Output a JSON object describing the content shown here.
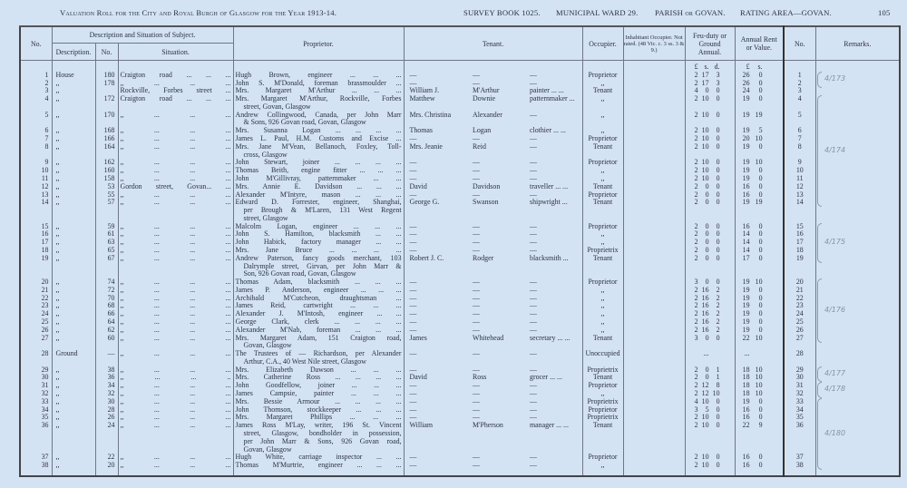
{
  "header": {
    "title": "Valuation Roll for the City and Royal Burgh of Glasgow for the Year 1913-14.",
    "survey_book": "SURVEY BOOK 1025.",
    "ward": "MUNICIPAL WARD 29.",
    "parish": "PARISH or GOVAN.",
    "rating_area": "RATING AREA—GOVAN.",
    "page_number": "105"
  },
  "columns": {
    "no": "No.",
    "group_subject": "Description and Situation of Subject.",
    "description": "Description.",
    "number": "No.",
    "situation": "Situation.",
    "proprietor": "Proprietor.",
    "tenant": "Tenant.",
    "occupier": "Occupier.",
    "inhabitant": "Inhabitant Occupier. Not rated. (48 Vic. c. 3 ss. 3 & 9.)",
    "feu": "Feu-duty or Ground Annual.",
    "rent": "Annual Rent or Value.",
    "no2": "No.",
    "remarks": "Remarks.",
    "feu_units": [
      "£",
      "s.",
      "d."
    ],
    "rent_units": [
      "£",
      "s."
    ]
  },
  "rows": [
    {
      "no": "1",
      "desc": "House",
      "num": "180",
      "sit": "Craigton road ... ... ...",
      "prop": [
        "Hugh Brown, engineer ... ... ..."
      ],
      "ten": [
        "—",
        "—",
        "—"
      ],
      "occ": "Proprietor",
      "feu": [
        "2",
        "17",
        "3"
      ],
      "rent": [
        "26",
        "0"
      ]
    },
    {
      "no": "2",
      "desc": ",,",
      "num": "178",
      "sit": ",, ... ... ...",
      "prop": [
        "John S. M'Donald, foreman brassmoulder ..."
      ],
      "ten": [
        "—",
        "—",
        "—"
      ],
      "occ": ",,",
      "feu": [
        "2",
        "17",
        "3"
      ],
      "rent": [
        "26",
        "0"
      ]
    },
    {
      "no": "3",
      "desc": ",,",
      "num": "",
      "sit": "Rockville, Forbes street ...",
      "prop": [
        "Mrs. Margaret M'Arthur ... ... ..."
      ],
      "ten": [
        "William J.",
        "M'Arthur",
        "painter ... ..."
      ],
      "occ": "Tenant",
      "feu": [
        "4",
        "0",
        "0"
      ],
      "rent": [
        "24",
        "0"
      ]
    },
    {
      "no": "4",
      "desc": ",,",
      "num": "172",
      "sit": "Craigton road ... ... ...",
      "prop": [
        "Mrs. Margaret M'Arthur, Rockville, Forbes",
        "street, Govan, Glasgow"
      ],
      "ten": [
        "Matthew",
        "Downie",
        "patternmaker ..."
      ],
      "occ": ",,",
      "feu": [
        "2",
        "10",
        "0"
      ],
      "rent": [
        "19",
        "0"
      ]
    },
    {
      "no": "5",
      "desc": ",,",
      "num": "170",
      "sit": ",, ... ... ...",
      "prop": [
        "Andrew Collingwood, Canada, per John Marr",
        "& Sons, 926 Govan road, Govan, Glasgow"
      ],
      "ten": [
        "Mrs. Christina",
        "Alexander",
        "—"
      ],
      "occ": ",,",
      "feu": [
        "2",
        "10",
        "0"
      ],
      "rent": [
        "19",
        "19"
      ]
    },
    {
      "no": "6",
      "desc": ",,",
      "num": "168",
      "sit": ",, ... ... ...",
      "prop": [
        "Mrs. Susanna Logan ... ... ... ..."
      ],
      "ten": [
        "Thomas",
        "Logan",
        "clothier ... ..."
      ],
      "occ": ",,",
      "feu": [
        "2",
        "10",
        "0"
      ],
      "rent": [
        "19",
        "5"
      ]
    },
    {
      "no": "7",
      "desc": ",,",
      "num": "166",
      "sit": ",, ... ... ...",
      "prop": [
        "James L. Paul, H.M. Customs and Excise ..."
      ],
      "ten": [
        "—",
        "—",
        "—"
      ],
      "occ": "Proprietor",
      "feu": [
        "2",
        "10",
        "0"
      ],
      "rent": [
        "20",
        "10"
      ]
    },
    {
      "no": "8",
      "desc": ",,",
      "num": "164",
      "sit": ",, ... ... ...",
      "prop": [
        "Mrs. Jane M'Vean, Bellanoch, Foxley, Toll-",
        "cross, Glasgow"
      ],
      "ten": [
        "Mrs. Jeanie",
        "Reid",
        "—"
      ],
      "occ": "Tenant",
      "feu": [
        "2",
        "10",
        "0"
      ],
      "rent": [
        "19",
        "0"
      ]
    },
    {
      "no": "9",
      "desc": ",,",
      "num": "162",
      "sit": ",, ... ... ...",
      "prop": [
        "John Stewart, joiner ... ... ... ..."
      ],
      "ten": [
        "—",
        "—",
        "—"
      ],
      "occ": "Proprietor",
      "feu": [
        "2",
        "10",
        "0"
      ],
      "rent": [
        "19",
        "10"
      ]
    },
    {
      "no": "10",
      "desc": ",,",
      "num": "160",
      "sit": ",, ... ... ...",
      "prop": [
        "Thomas Beith, engine fitter ... ... ..."
      ],
      "ten": [
        "—",
        "—",
        "—"
      ],
      "occ": ",,",
      "feu": [
        "2",
        "10",
        "0"
      ],
      "rent": [
        "19",
        "0"
      ]
    },
    {
      "no": "11",
      "desc": ",,",
      "num": "158",
      "sit": ",, ... ... ...",
      "prop": [
        "John M'Gillivray, patternmaker ... ..."
      ],
      "ten": [
        "—",
        "—",
        "—"
      ],
      "occ": ",,",
      "feu": [
        "2",
        "10",
        "0"
      ],
      "rent": [
        "19",
        "0"
      ]
    },
    {
      "no": "12",
      "desc": ",,",
      "num": "53",
      "sit": "Gordon street, Govan... ...",
      "prop": [
        "Mrs. Annie E. Davidson ... ... ..."
      ],
      "ten": [
        "David",
        "Davidson",
        "traveller ... ..."
      ],
      "occ": "Tenant",
      "feu": [
        "2",
        "0",
        "0"
      ],
      "rent": [
        "16",
        "0"
      ]
    },
    {
      "no": "13",
      "desc": ",,",
      "num": "55",
      "sit": ",, ... ... ...",
      "prop": [
        "Alexander M'Intyre, mason ... ... ..."
      ],
      "ten": [
        "—",
        "—",
        "—"
      ],
      "occ": "Proprietor",
      "feu": [
        "2",
        "0",
        "0"
      ],
      "rent": [
        "16",
        "0"
      ]
    },
    {
      "no": "14",
      "desc": ",,",
      "num": "57",
      "sit": ",, ... ... ...",
      "prop": [
        "Edward D. Forrester, engineer, Shanghai,",
        "per Brough & M'Laren, 131 West Regent",
        "street, Glasgow"
      ],
      "ten": [
        "George G.",
        "Swanson",
        "shipwright ..."
      ],
      "occ": "Tenant",
      "feu": [
        "2",
        "0",
        "0"
      ],
      "rent": [
        "19",
        "19"
      ]
    },
    {
      "no": "15",
      "desc": ",,",
      "num": "59",
      "sit": ",, ... ... ...",
      "prop": [
        "Malcolm Logan, engineer ... ... ..."
      ],
      "ten": [
        "—",
        "—",
        "—"
      ],
      "occ": "Proprietor",
      "feu": [
        "2",
        "0",
        "0"
      ],
      "rent": [
        "16",
        "0"
      ]
    },
    {
      "no": "16",
      "desc": ",,",
      "num": "61",
      "sit": ",, ... ... ...",
      "prop": [
        "John S. Hamilton, blacksmith ... ..."
      ],
      "ten": [
        "—",
        "—",
        "—"
      ],
      "occ": ",,",
      "feu": [
        "2",
        "0",
        "0"
      ],
      "rent": [
        "14",
        "0"
      ]
    },
    {
      "no": "17",
      "desc": ",,",
      "num": "63",
      "sit": ",, ... ... ...",
      "prop": [
        "John Habick, factory manager ... ..."
      ],
      "ten": [
        "—",
        "—",
        "—"
      ],
      "occ": ",,",
      "feu": [
        "2",
        "0",
        "0"
      ],
      "rent": [
        "14",
        "0"
      ]
    },
    {
      "no": "18",
      "desc": ",,",
      "num": "65",
      "sit": ",, ... ... ...",
      "prop": [
        "Mrs. Jane Bruce ... ... ... ..."
      ],
      "ten": [
        "—",
        "—",
        "—"
      ],
      "occ": "Proprietrix",
      "feu": [
        "2",
        "0",
        "0"
      ],
      "rent": [
        "14",
        "0"
      ]
    },
    {
      "no": "19",
      "desc": ",,",
      "num": "67",
      "sit": ",, ... ... ...",
      "prop": [
        "Andrew Paterson, fancy goods merchant, 103",
        "Dalrymple street, Girvan, per John Marr &",
        "Son, 926 Govan road, Govan, Glasgow"
      ],
      "ten": [
        "Robert J. C.",
        "Rodger",
        "blacksmith ..."
      ],
      "occ": "Tenant",
      "feu": [
        "2",
        "0",
        "0"
      ],
      "rent": [
        "17",
        "0"
      ]
    },
    {
      "no": "20",
      "desc": ",,",
      "num": "74",
      "sit": ",, ... ... ...",
      "prop": [
        "Thomas Adam, blacksmith ... ... ..."
      ],
      "ten": [
        "—",
        "—",
        "—"
      ],
      "occ": "Proprietor",
      "feu": [
        "3",
        "0",
        "0"
      ],
      "rent": [
        "19",
        "10"
      ]
    },
    {
      "no": "21",
      "desc": ",,",
      "num": "72",
      "sit": ",, ... ... ...",
      "prop": [
        "James P. Anderson, engineer ... ... ..."
      ],
      "ten": [
        "—",
        "—",
        "—"
      ],
      "occ": ",,",
      "feu": [
        "2",
        "16",
        "2"
      ],
      "rent": [
        "19",
        "0"
      ]
    },
    {
      "no": "22",
      "desc": ",,",
      "num": "70",
      "sit": ",, ... ... ...",
      "prop": [
        "Archibald M'Cutcheon, draughtsman ..."
      ],
      "ten": [
        "—",
        "—",
        "—"
      ],
      "occ": ",,",
      "feu": [
        "2",
        "16",
        "2"
      ],
      "rent": [
        "19",
        "0"
      ]
    },
    {
      "no": "23",
      "desc": ",,",
      "num": "68",
      "sit": ",, ... ... ...",
      "prop": [
        "James Reid, cartwright ... ... ..."
      ],
      "ten": [
        "—",
        "—",
        "—"
      ],
      "occ": ",,",
      "feu": [
        "2",
        "16",
        "2"
      ],
      "rent": [
        "19",
        "0"
      ]
    },
    {
      "no": "24",
      "desc": ",,",
      "num": "66",
      "sit": ",, ... ... ...",
      "prop": [
        "Alexander J. M'Intosh, engineer ... ..."
      ],
      "ten": [
        "—",
        "—",
        "—"
      ],
      "occ": ",,",
      "feu": [
        "2",
        "16",
        "2"
      ],
      "rent": [
        "19",
        "0"
      ]
    },
    {
      "no": "25",
      "desc": ",,",
      "num": "64",
      "sit": ",, ... ... ...",
      "prop": [
        "George Clark, clerk ... ... ... ..."
      ],
      "ten": [
        "—",
        "—",
        "—"
      ],
      "occ": ",,",
      "feu": [
        "2",
        "16",
        "2"
      ],
      "rent": [
        "19",
        "0"
      ]
    },
    {
      "no": "26",
      "desc": ",,",
      "num": "62",
      "sit": ",, ... ... ...",
      "prop": [
        "Alexander M'Nab, foreman ... ... ..."
      ],
      "ten": [
        "—",
        "—",
        "—"
      ],
      "occ": ",,",
      "feu": [
        "2",
        "16",
        "2"
      ],
      "rent": [
        "19",
        "0"
      ]
    },
    {
      "no": "27",
      "desc": ",,",
      "num": "60",
      "sit": ",, ... ... ...",
      "prop": [
        "Mrs. Margaret Adam, 151 Craigton road,",
        "Govan, Glasgow"
      ],
      "ten": [
        "James",
        "Whitehead",
        "secretary ... ..."
      ],
      "occ": "Tenant",
      "feu": [
        "3",
        "0",
        "0"
      ],
      "rent": [
        "22",
        "10"
      ]
    },
    {
      "no": "28",
      "desc": "Ground",
      "num": "—",
      "sit": ",, ... ... ...",
      "prop": [
        "The Trustees of — Richardson, per Alexander",
        "Arthur, C.A., 40 West Nile street, Glasgow"
      ],
      "ten": [
        "—",
        "—",
        "—"
      ],
      "occ": "Unoccupied",
      "feu": [
        "",
        "...",
        ""
      ],
      "rent": [
        "...",
        ""
      ]
    },
    {
      "no": "29",
      "desc": ",,",
      "num": "38",
      "sit": ",, ... ... ...",
      "prop": [
        "Mrs. Elizabeth Dawson ... ... ..."
      ],
      "ten": [
        "—",
        "—",
        "—"
      ],
      "occ": "Proprietrix",
      "feu": [
        "2",
        "0",
        "1"
      ],
      "rent": [
        "18",
        "10"
      ]
    },
    {
      "no": "30",
      "desc": ",,",
      "num": "36",
      "sit": ",, ... ... ..",
      "prop": [
        "Mrs. Catherine Ross ... ... ... ..."
      ],
      "ten": [
        "David",
        "Ross",
        "grocer ... ..."
      ],
      "occ": "Tenant",
      "feu": [
        "2",
        "0",
        "1"
      ],
      "rent": [
        "18",
        "10"
      ]
    },
    {
      "no": "31",
      "desc": ",,",
      "num": "34",
      "sit": ",, ... ... ...",
      "prop": [
        "John Goodfellow, joiner ... ... ..."
      ],
      "ten": [
        "—",
        "—",
        "—"
      ],
      "occ": "Proprietor",
      "feu": [
        "2",
        "12",
        "8"
      ],
      "rent": [
        "18",
        "10"
      ]
    },
    {
      "no": "32",
      "desc": ",,",
      "num": "32",
      "sit": ",, ... ... ...",
      "prop": [
        "James Campsie, painter ... ... ..."
      ],
      "ten": [
        "—",
        "—",
        "—"
      ],
      "occ": ",,",
      "feu": [
        "2",
        "12",
        "10"
      ],
      "rent": [
        "18",
        "10"
      ]
    },
    {
      "no": "33",
      "desc": ",,",
      "num": "30",
      "sit": ",, ... ... ...",
      "prop": [
        "Mrs. Bessie Armour ... ... ... ..."
      ],
      "ten": [
        "—",
        "—",
        "—"
      ],
      "occ": "Proprietrix",
      "feu": [
        "4",
        "10",
        "0"
      ],
      "rent": [
        "19",
        "0"
      ]
    },
    {
      "no": "34",
      "desc": ",,",
      "num": "28",
      "sit": ",, ... ... ...",
      "prop": [
        "John Thomson, stockkeeper ... ... ..."
      ],
      "ten": [
        "—",
        "—",
        "—"
      ],
      "occ": "Proprietor",
      "feu": [
        "3",
        "5",
        "0"
      ],
      "rent": [
        "16",
        "0"
      ]
    },
    {
      "no": "35",
      "desc": ",,",
      "num": "26",
      "sit": ",, ... ... ...",
      "prop": [
        "Mrs. Margaret Phillips ... ... ..."
      ],
      "ten": [
        "—",
        "—",
        "—"
      ],
      "occ": "Proprietrix",
      "feu": [
        "2",
        "10",
        "0"
      ],
      "rent": [
        "16",
        "0"
      ]
    },
    {
      "no": "36",
      "desc": ",,",
      "num": "24",
      "sit": ",, ... ... ...",
      "prop": [
        "James Ross M'Lay, writer, 196 St. Vincent",
        "street, Glasgow, bondholder in possession,",
        "per John Marr & Sons, 926 Govan road,",
        "Govan, Glasgow"
      ],
      "ten": [
        "William",
        "M'Pherson",
        "manager ... ..."
      ],
      "occ": "Tenant",
      "feu": [
        "2",
        "10",
        "0"
      ],
      "rent": [
        "22",
        "9"
      ]
    },
    {
      "no": "37",
      "desc": ",,",
      "num": "22",
      "sit": ",, ... ... ...",
      "prop": [
        "Hugh White, carriage inspector ... ..."
      ],
      "ten": [
        "—",
        "—",
        "—"
      ],
      "occ": "Proprietor",
      "feu": [
        "2",
        "10",
        "0"
      ],
      "rent": [
        "16",
        "0"
      ]
    },
    {
      "no": "38",
      "desc": ",,",
      "num": "20",
      "sit": ",, ... ... ...",
      "prop": [
        "Thomas M'Murtrie, engineer ... ... ..."
      ],
      "ten": [
        "—",
        "—",
        "—"
      ],
      "occ": ",,",
      "feu": [
        "2",
        "10",
        "0"
      ],
      "rent": [
        "16",
        "0"
      ]
    }
  ],
  "remarks": [
    {
      "text": "4/173",
      "from": 1,
      "to": 2
    },
    {
      "text": "4/174",
      "from": 4,
      "to": 14
    },
    {
      "text": "4/175",
      "from": 15,
      "to": 19
    },
    {
      "text": "4/176",
      "from": 20,
      "to": 27
    },
    {
      "text": "4/177",
      "from": 29,
      "to": 30
    },
    {
      "text": "4/178",
      "from": 31,
      "to": 32
    },
    {
      "text": "4/180",
      "from": 33,
      "to": 38
    }
  ]
}
